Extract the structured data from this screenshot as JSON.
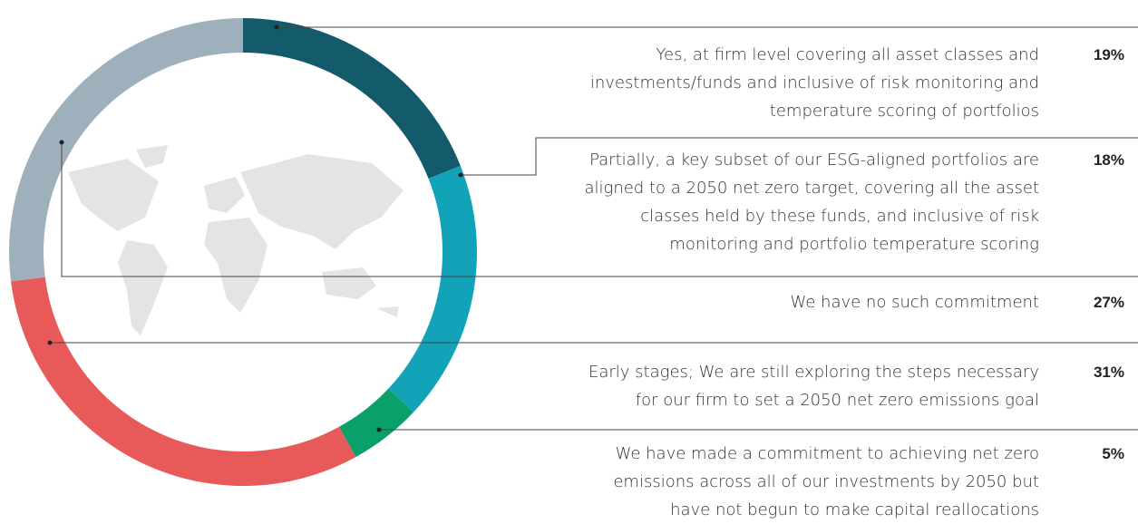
{
  "chart_data": {
    "type": "pie",
    "donut": true,
    "categories": [
      "Yes, at firm level covering all asset classes and investments/funds and inclusive of risk monitoring and temperature scoring of portfolios",
      "Partially, a key subset of our ESG-aligned portfolios are aligned to a 2050 net zero target, covering all the asset classes held by these funds, and inclusive of risk monitoring and portfolio temperature scoring",
      "We have made a commitment to achieving net zero emissions across all of our investments by 2050 but have not begun to make capital reallocations",
      "Early stages; We are still exploring the steps necessary for our firm to set a 2050 net zero emissions goal",
      "We have no such commitment"
    ],
    "values": [
      19,
      18,
      5,
      31,
      27
    ],
    "value_labels": [
      "19%",
      "18%",
      "5%",
      "31%",
      "27%"
    ],
    "colors": [
      "#135a6b",
      "#13a3b8",
      "#0aa06a",
      "#e85a5a",
      "#9fb0bd"
    ]
  }
}
